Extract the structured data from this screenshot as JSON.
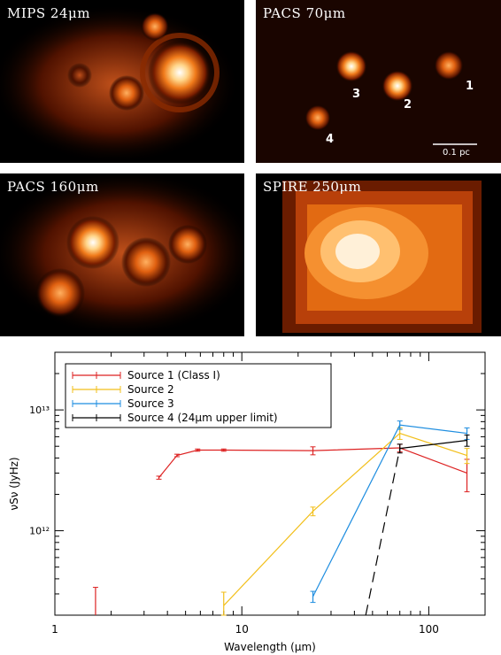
{
  "panels": {
    "mips24": {
      "label": "MIPS 24μm"
    },
    "pacs70": {
      "label": "PACS 70μm",
      "sources": [
        "1",
        "2",
        "3",
        "4"
      ],
      "scalebar": "0.1 pc"
    },
    "pacs160": {
      "label": "PACS 160μm"
    },
    "spire250": {
      "label": "SPIRE 250μm"
    }
  },
  "colors": {
    "source1": "#dd2222",
    "source2": "#f2bf1a",
    "source3": "#1f8ee0",
    "source4": "#000000"
  },
  "chart_data": {
    "type": "line",
    "xlabel": "Wavelength (μm)",
    "ylabel": "νSν (JyHz)",
    "xscale": "log",
    "yscale": "log",
    "xlim": [
      1,
      200
    ],
    "ylim": [
      200000000000.0,
      30000000000000.0
    ],
    "xticks": [
      {
        "value": 1,
        "label": "1"
      },
      {
        "value": 10,
        "label": "10"
      },
      {
        "value": 100,
        "label": "100"
      }
    ],
    "yticks": [
      {
        "value": 1000000000000.0,
        "label": "10¹²"
      },
      {
        "value": 10000000000000.0,
        "label": "10¹³"
      }
    ],
    "legend": {
      "position": "top-left"
    },
    "series": [
      {
        "name": "Source 1 (Class I)",
        "color": "#dd2222",
        "x": [
          3.6,
          4.5,
          5.8,
          8.0,
          24,
          70,
          160
        ],
        "y": [
          2750000000000.0,
          4200000000000.0,
          4650000000000.0,
          4650000000000.0,
          4600000000000.0,
          4850000000000.0,
          3000000000000.0
        ],
        "err": [
          80000000000.0,
          100000000000.0,
          100000000000.0,
          100000000000.0,
          350000000000.0,
          350000000000.0,
          900000000000.0
        ],
        "extra_points": [
          {
            "x": 1.65,
            "y": 270000000000.0,
            "err_high": 340000000000.0,
            "err_low": 200000000000.0
          }
        ]
      },
      {
        "name": "Source 2",
        "color": "#f2bf1a",
        "x": [
          8.0,
          24,
          70,
          160
        ],
        "y": [
          240000000000.0,
          1450000000000.0,
          6400000000000.0,
          4200000000000.0
        ],
        "err": [
          70000000000.0,
          120000000000.0,
          700000000000.0,
          600000000000.0
        ]
      },
      {
        "name": "Source 3",
        "color": "#1f8ee0",
        "x": [
          24,
          70,
          160
        ],
        "y": [
          285000000000.0,
          7500000000000.0,
          6400000000000.0
        ],
        "err": [
          30000000000.0,
          600000000000.0,
          700000000000.0
        ]
      },
      {
        "name": "Source 4 (24μm upper limit)",
        "color": "#000000",
        "x": [
          70,
          160
        ],
        "y": [
          4800000000000.0,
          5600000000000.0
        ],
        "err": [
          400000000000.0,
          600000000000.0
        ],
        "upper_limit_line": {
          "x": [
            46,
            70
          ],
          "y": [
            200000000000.0,
            4800000000000.0
          ]
        }
      }
    ]
  }
}
